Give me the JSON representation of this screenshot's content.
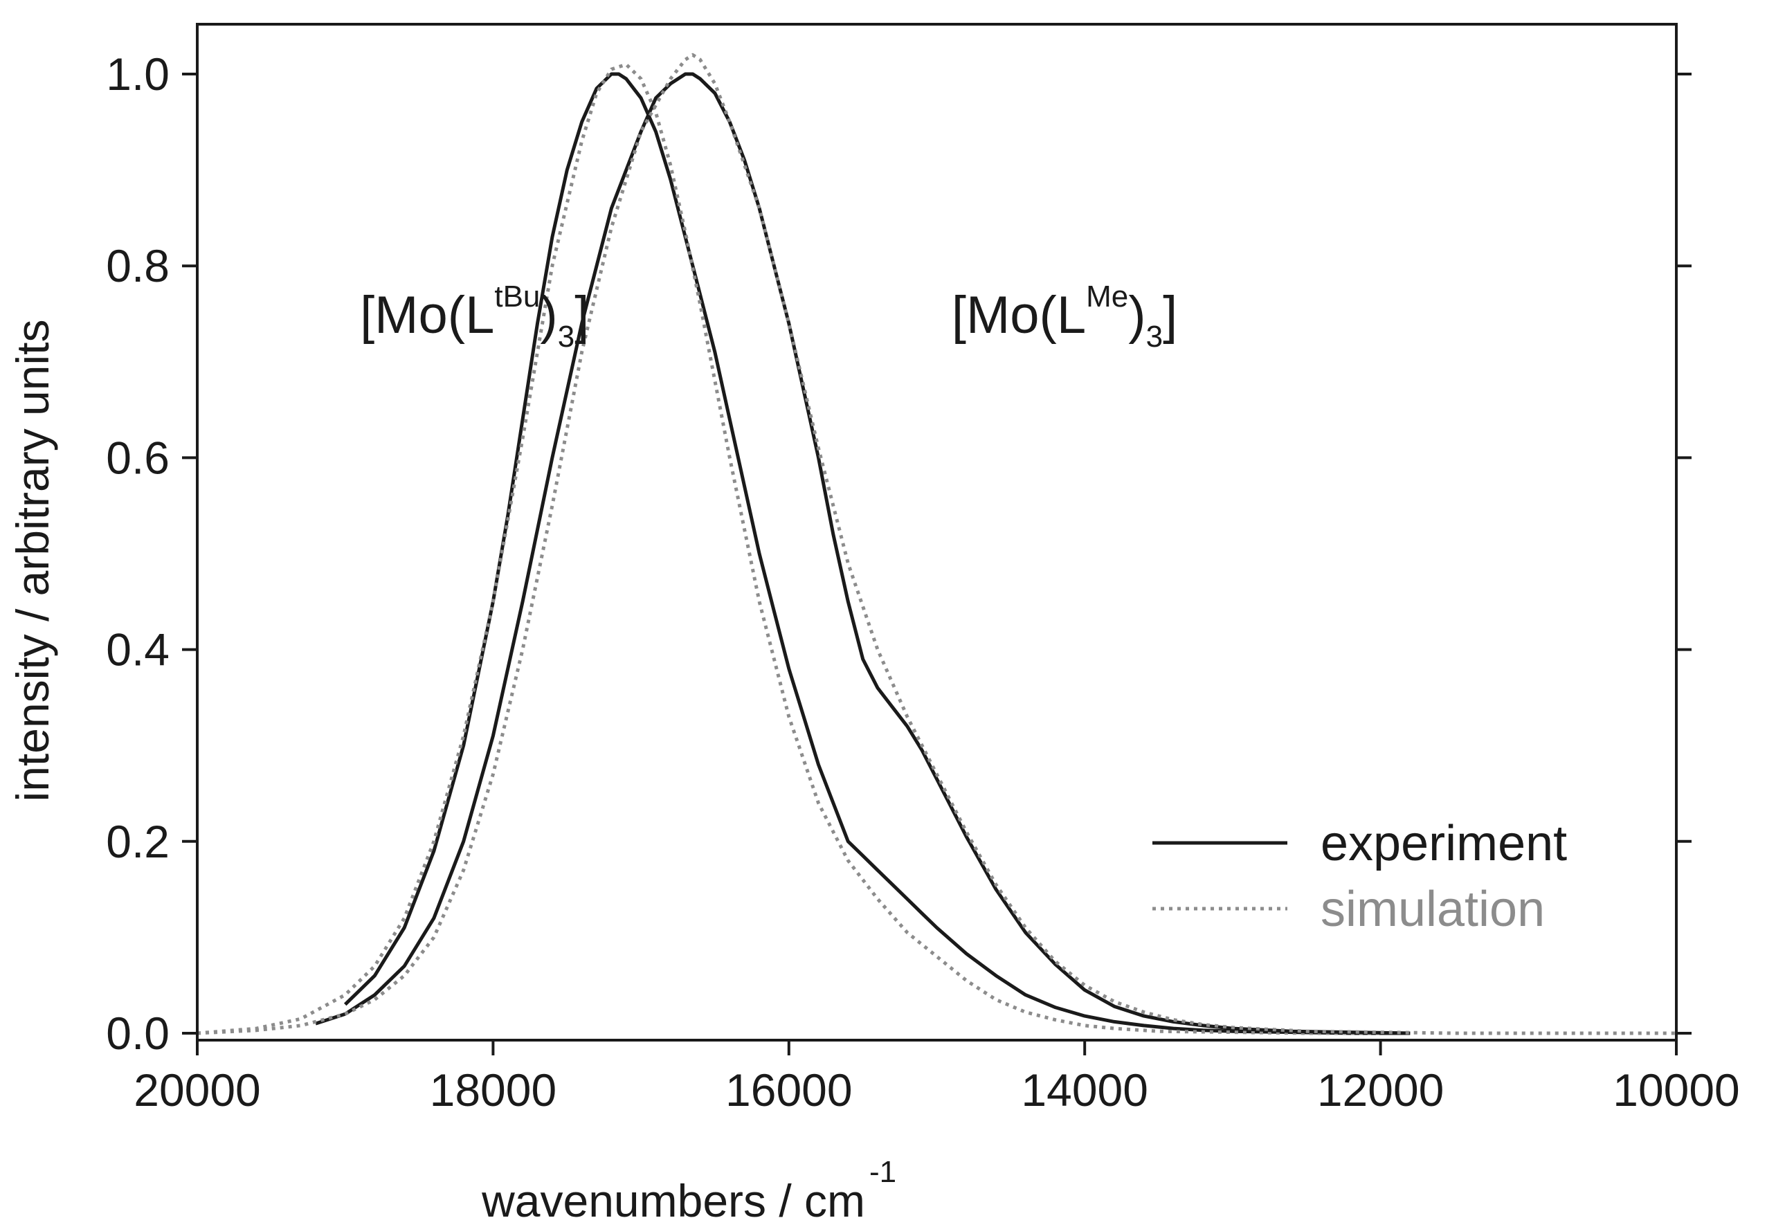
{
  "chart_data": {
    "type": "line",
    "xlabel": "wavenumbers / cm",
    "xlabel_superscript": "-1",
    "ylabel": "intensity / arbitrary units",
    "xlim": [
      20000,
      10000
    ],
    "ylim": [
      0.0,
      1.05
    ],
    "x_ticks": [
      20000,
      18000,
      16000,
      14000,
      12000,
      10000
    ],
    "x_tick_labels": [
      "20000",
      "18000",
      "16000",
      "14000",
      "12000",
      "10000"
    ],
    "y_ticks": [
      0.0,
      0.2,
      0.4,
      0.6,
      0.8,
      1.0
    ],
    "y_tick_labels": [
      "0.0",
      "0.2",
      "0.4",
      "0.6",
      "0.8",
      "1.0"
    ],
    "grid": false,
    "legend_position": "bottom-right",
    "legend": [
      {
        "label": "experiment",
        "style": "solid",
        "color": "#1a1a1a"
      },
      {
        "label": "simulation",
        "style": "dotted",
        "color": "#8c8c8c"
      }
    ],
    "annotations": [
      {
        "id": "tbu",
        "prefix": "[Mo(L",
        "superscript": "tBu",
        "suffix": ")",
        "subscript": "3",
        "close": "]",
        "x": 18900,
        "y": 0.73
      },
      {
        "id": "me",
        "prefix": "[Mo(L",
        "superscript": "Me",
        "suffix": ")",
        "subscript": "3",
        "close": "]",
        "x": 14900,
        "y": 0.73
      }
    ],
    "series": [
      {
        "name": "[Mo(LtBu)3] experiment",
        "style": "solid",
        "color": "#1a1a1a",
        "x": [
          19000,
          18800,
          18600,
          18400,
          18200,
          18000,
          17900,
          17800,
          17700,
          17600,
          17500,
          17400,
          17300,
          17200,
          17150,
          17100,
          17000,
          16900,
          16800,
          16700,
          16600,
          16500,
          16400,
          16300,
          16200,
          16100,
          16000,
          15900,
          15800,
          15700,
          15600,
          15500,
          15400,
          15300,
          15200,
          15100,
          15000,
          14800,
          14600,
          14400,
          14200,
          14000,
          13800,
          13600,
          13400,
          13200,
          13000,
          12600,
          12200,
          11800
        ],
        "y": [
          0.03,
          0.06,
          0.11,
          0.19,
          0.3,
          0.45,
          0.54,
          0.64,
          0.74,
          0.83,
          0.9,
          0.95,
          0.985,
          1.0,
          1.0,
          0.995,
          0.975,
          0.94,
          0.89,
          0.83,
          0.77,
          0.71,
          0.64,
          0.57,
          0.5,
          0.44,
          0.38,
          0.33,
          0.28,
          0.24,
          0.2,
          0.185,
          0.17,
          0.155,
          0.14,
          0.125,
          0.11,
          0.083,
          0.06,
          0.04,
          0.027,
          0.018,
          0.012,
          0.008,
          0.005,
          0.003,
          0.002,
          0.001,
          0.0,
          0.0
        ]
      },
      {
        "name": "[Mo(LtBu)3] simulation",
        "style": "dotted",
        "color": "#8c8c8c",
        "x": [
          20000,
          19600,
          19300,
          19000,
          18800,
          18600,
          18400,
          18200,
          18000,
          17800,
          17600,
          17400,
          17300,
          17200,
          17100,
          17000,
          16900,
          16800,
          16700,
          16600,
          16400,
          16200,
          16000,
          15800,
          15600,
          15400,
          15200,
          15000,
          14800,
          14600,
          14400,
          14200,
          14000,
          13800,
          13500,
          13000,
          12500,
          12000
        ],
        "y": [
          0.0,
          0.005,
          0.015,
          0.04,
          0.07,
          0.12,
          0.2,
          0.31,
          0.45,
          0.62,
          0.8,
          0.93,
          0.98,
          1.005,
          1.01,
          0.995,
          0.96,
          0.905,
          0.835,
          0.76,
          0.6,
          0.45,
          0.33,
          0.24,
          0.18,
          0.14,
          0.105,
          0.08,
          0.055,
          0.035,
          0.022,
          0.014,
          0.008,
          0.005,
          0.002,
          0.001,
          0.0,
          0.0
        ]
      },
      {
        "name": "[Mo(LMe)3] experiment",
        "style": "solid",
        "color": "#1a1a1a",
        "x": [
          19200,
          19000,
          18800,
          18600,
          18400,
          18200,
          18000,
          17800,
          17600,
          17400,
          17200,
          17000,
          16900,
          16800,
          16700,
          16650,
          16600,
          16500,
          16400,
          16300,
          16200,
          16100,
          16000,
          15900,
          15800,
          15700,
          15600,
          15500,
          15400,
          15300,
          15200,
          15100,
          15000,
          14900,
          14800,
          14600,
          14400,
          14200,
          14000,
          13800,
          13600,
          13400,
          13200,
          13000,
          12600,
          12200,
          11800
        ],
        "y": [
          0.01,
          0.02,
          0.04,
          0.07,
          0.12,
          0.2,
          0.31,
          0.45,
          0.6,
          0.74,
          0.86,
          0.94,
          0.975,
          0.99,
          1.0,
          1.0,
          0.995,
          0.98,
          0.95,
          0.91,
          0.86,
          0.8,
          0.74,
          0.67,
          0.6,
          0.52,
          0.45,
          0.39,
          0.36,
          0.34,
          0.32,
          0.295,
          0.265,
          0.235,
          0.205,
          0.15,
          0.105,
          0.072,
          0.045,
          0.028,
          0.018,
          0.012,
          0.008,
          0.005,
          0.002,
          0.001,
          0.0
        ]
      },
      {
        "name": "[Mo(LMe)3] simulation",
        "style": "dotted",
        "color": "#8c8c8c",
        "x": [
          20000,
          19600,
          19300,
          19000,
          18800,
          18600,
          18400,
          18200,
          18000,
          17800,
          17600,
          17400,
          17200,
          17000,
          16800,
          16700,
          16650,
          16600,
          16500,
          16400,
          16200,
          16000,
          15800,
          15600,
          15400,
          15200,
          15000,
          14800,
          14600,
          14400,
          14200,
          14000,
          13800,
          13600,
          13400,
          13200,
          13000,
          12500,
          12000,
          11500,
          11000,
          10500,
          10000
        ],
        "y": [
          0.0,
          0.003,
          0.008,
          0.02,
          0.035,
          0.06,
          0.1,
          0.17,
          0.27,
          0.4,
          0.55,
          0.71,
          0.84,
          0.94,
          0.995,
          1.015,
          1.02,
          1.015,
          0.99,
          0.95,
          0.86,
          0.74,
          0.61,
          0.49,
          0.4,
          0.33,
          0.27,
          0.21,
          0.155,
          0.11,
          0.075,
          0.05,
          0.033,
          0.022,
          0.014,
          0.009,
          0.006,
          0.002,
          0.001,
          0.0,
          0.0,
          0.0,
          0.0
        ]
      }
    ]
  }
}
